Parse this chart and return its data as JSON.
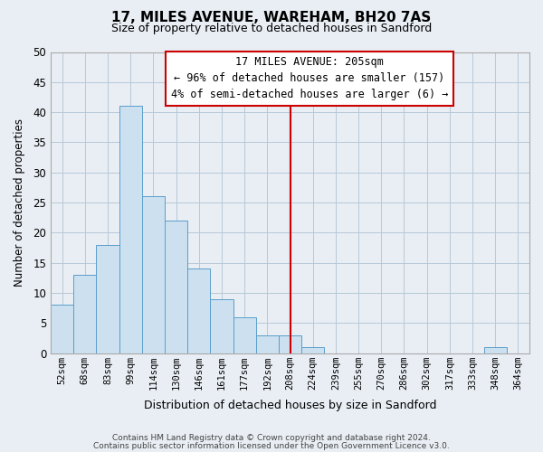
{
  "title": "17, MILES AVENUE, WAREHAM, BH20 7AS",
  "subtitle": "Size of property relative to detached houses in Sandford",
  "xlabel": "Distribution of detached houses by size in Sandford",
  "ylabel": "Number of detached properties",
  "bin_labels": [
    "52sqm",
    "68sqm",
    "83sqm",
    "99sqm",
    "114sqm",
    "130sqm",
    "146sqm",
    "161sqm",
    "177sqm",
    "192sqm",
    "208sqm",
    "224sqm",
    "239sqm",
    "255sqm",
    "270sqm",
    "286sqm",
    "302sqm",
    "317sqm",
    "333sqm",
    "348sqm",
    "364sqm"
  ],
  "bar_values": [
    8,
    13,
    18,
    41,
    26,
    22,
    14,
    9,
    6,
    3,
    3,
    1,
    0,
    0,
    0,
    0,
    0,
    0,
    0,
    1,
    0
  ],
  "bar_color": "#cce0f0",
  "bar_edge_color": "#5a9ec9",
  "vline_x_index": 10.0,
  "vline_color": "#cc0000",
  "ylim": [
    0,
    50
  ],
  "yticks": [
    0,
    5,
    10,
    15,
    20,
    25,
    30,
    35,
    40,
    45,
    50
  ],
  "annotation_title": "17 MILES AVENUE: 205sqm",
  "annotation_line1": "← 96% of detached houses are smaller (157)",
  "annotation_line2": "4% of semi-detached houses are larger (6) →",
  "footer1": "Contains HM Land Registry data © Crown copyright and database right 2024.",
  "footer2": "Contains public sector information licensed under the Open Government Licence v3.0.",
  "background_color": "#e8eef4",
  "plot_bg_color": "#e8eef4",
  "grid_color": "#b8c8d8",
  "title_fontsize": 11,
  "subtitle_fontsize": 9
}
